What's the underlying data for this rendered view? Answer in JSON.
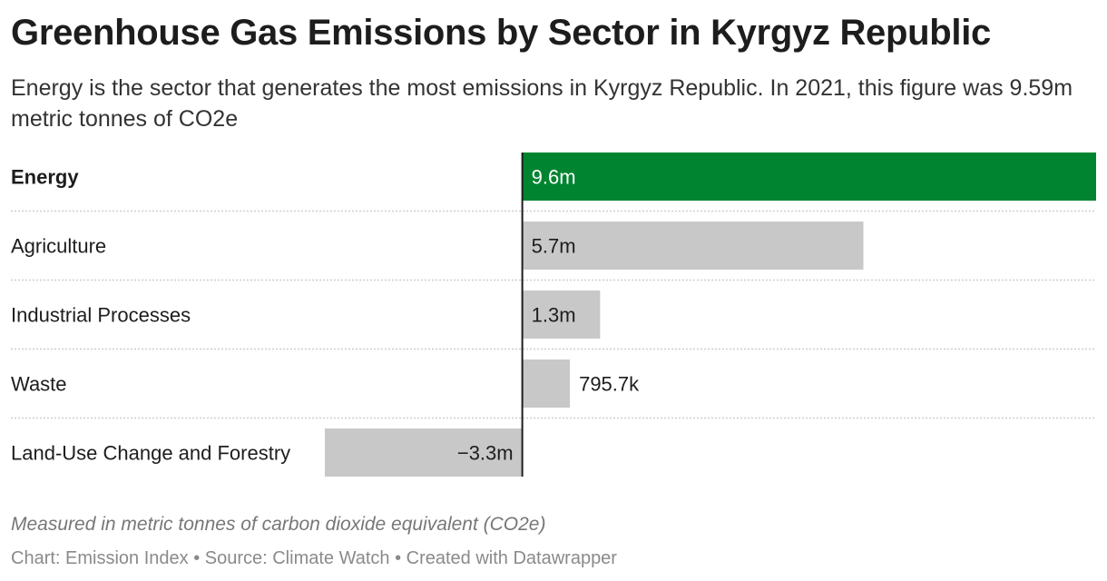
{
  "title": "Greenhouse Gas Emissions by Sector in Kyrgyz Republic",
  "subtitle": "Energy is the sector that generates the most emissions in Kyrgyz Republic. In 2021, this figure was 9.59m metric tonnes of CO2e",
  "note": "Measured in metric tonnes of carbon dioxide equivalent (CO2e)",
  "footer": "Chart: Emission Index • Source: Climate Watch • Created with Datawrapper",
  "colors": {
    "highlight": "#00842f",
    "bar": "#c8c8c8",
    "axis": "#1d1d1d",
    "grid": "#cfcfcf"
  },
  "chart_data": {
    "type": "bar",
    "orientation": "horizontal",
    "categories": [
      "Energy",
      "Agriculture",
      "Industrial Processes",
      "Waste",
      "Land-Use Change and Forestry"
    ],
    "values": [
      9.59,
      5.7,
      1.3,
      0.7957,
      -3.3
    ],
    "value_labels": [
      "9.6m",
      "5.7m",
      "1.3m",
      "795.7k",
      "−3.3m"
    ],
    "highlight_category": "Energy",
    "xlim": [
      -3.3,
      9.59
    ],
    "unit": "million metric tonnes CO2e",
    "grid": false
  }
}
